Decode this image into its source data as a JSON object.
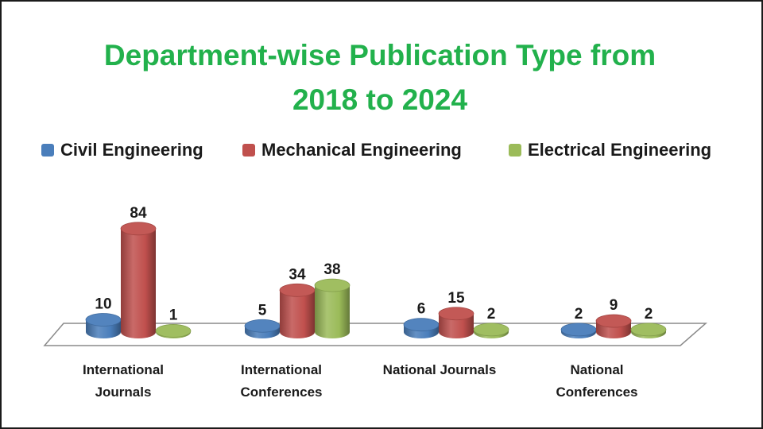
{
  "chart_data": {
    "type": "bar",
    "title_lines": [
      "Department-wise Publication Type from",
      "2018 to 2024"
    ],
    "categories": [
      [
        "International",
        "Journals"
      ],
      [
        "International",
        "Conferences"
      ],
      [
        "National Journals"
      ],
      [
        "National",
        "Conferences"
      ]
    ],
    "series": [
      {
        "name": "Civil Engineering",
        "color": "#4a7ebb",
        "values": [
          10,
          5,
          6,
          2
        ]
      },
      {
        "name": "Mechanical Engineering",
        "color": "#c0504d",
        "values": [
          84,
          34,
          15,
          9
        ]
      },
      {
        "name": "Electrical Engineering",
        "color": "#9bbb59",
        "values": [
          1,
          38,
          2,
          2
        ]
      }
    ],
    "legend_position": "top",
    "data_labels": true,
    "grid": false,
    "style": "3d-cylinder"
  }
}
